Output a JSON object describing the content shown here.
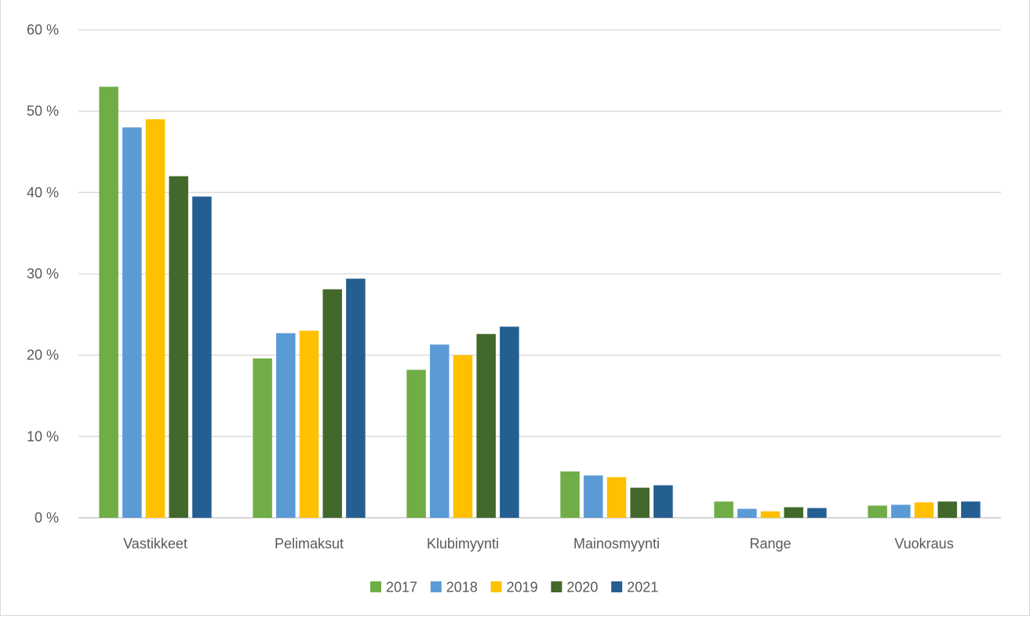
{
  "chart_data": {
    "type": "bar",
    "categories": [
      "Vastikkeet",
      "Pelimaksut",
      "Klubimyynti",
      "Mainosmyynti",
      "Range",
      "Vuokraus"
    ],
    "series": [
      {
        "name": "2017",
        "color": "#70ad47",
        "values": [
          53.0,
          19.6,
          18.2,
          5.7,
          2.0,
          1.5
        ]
      },
      {
        "name": "2018",
        "color": "#5b9bd5",
        "values": [
          48.0,
          22.7,
          21.3,
          5.2,
          1.1,
          1.6
        ]
      },
      {
        "name": "2019",
        "color": "#ffc000",
        "values": [
          49.0,
          23.0,
          20.0,
          5.0,
          0.8,
          1.9
        ]
      },
      {
        "name": "2020",
        "color": "#43682b",
        "values": [
          42.0,
          28.1,
          22.6,
          3.7,
          1.3,
          2.0
        ]
      },
      {
        "name": "2021",
        "color": "#255e91",
        "values": [
          39.5,
          29.4,
          23.5,
          4.0,
          1.2,
          2.0
        ]
      }
    ],
    "yticks": [
      "0 %",
      "10 %",
      "20 %",
      "30 %",
      "40 %",
      "50 %",
      "60 %"
    ],
    "ylim": [
      0,
      60
    ],
    "grid": true,
    "legend_position": "bottom"
  }
}
